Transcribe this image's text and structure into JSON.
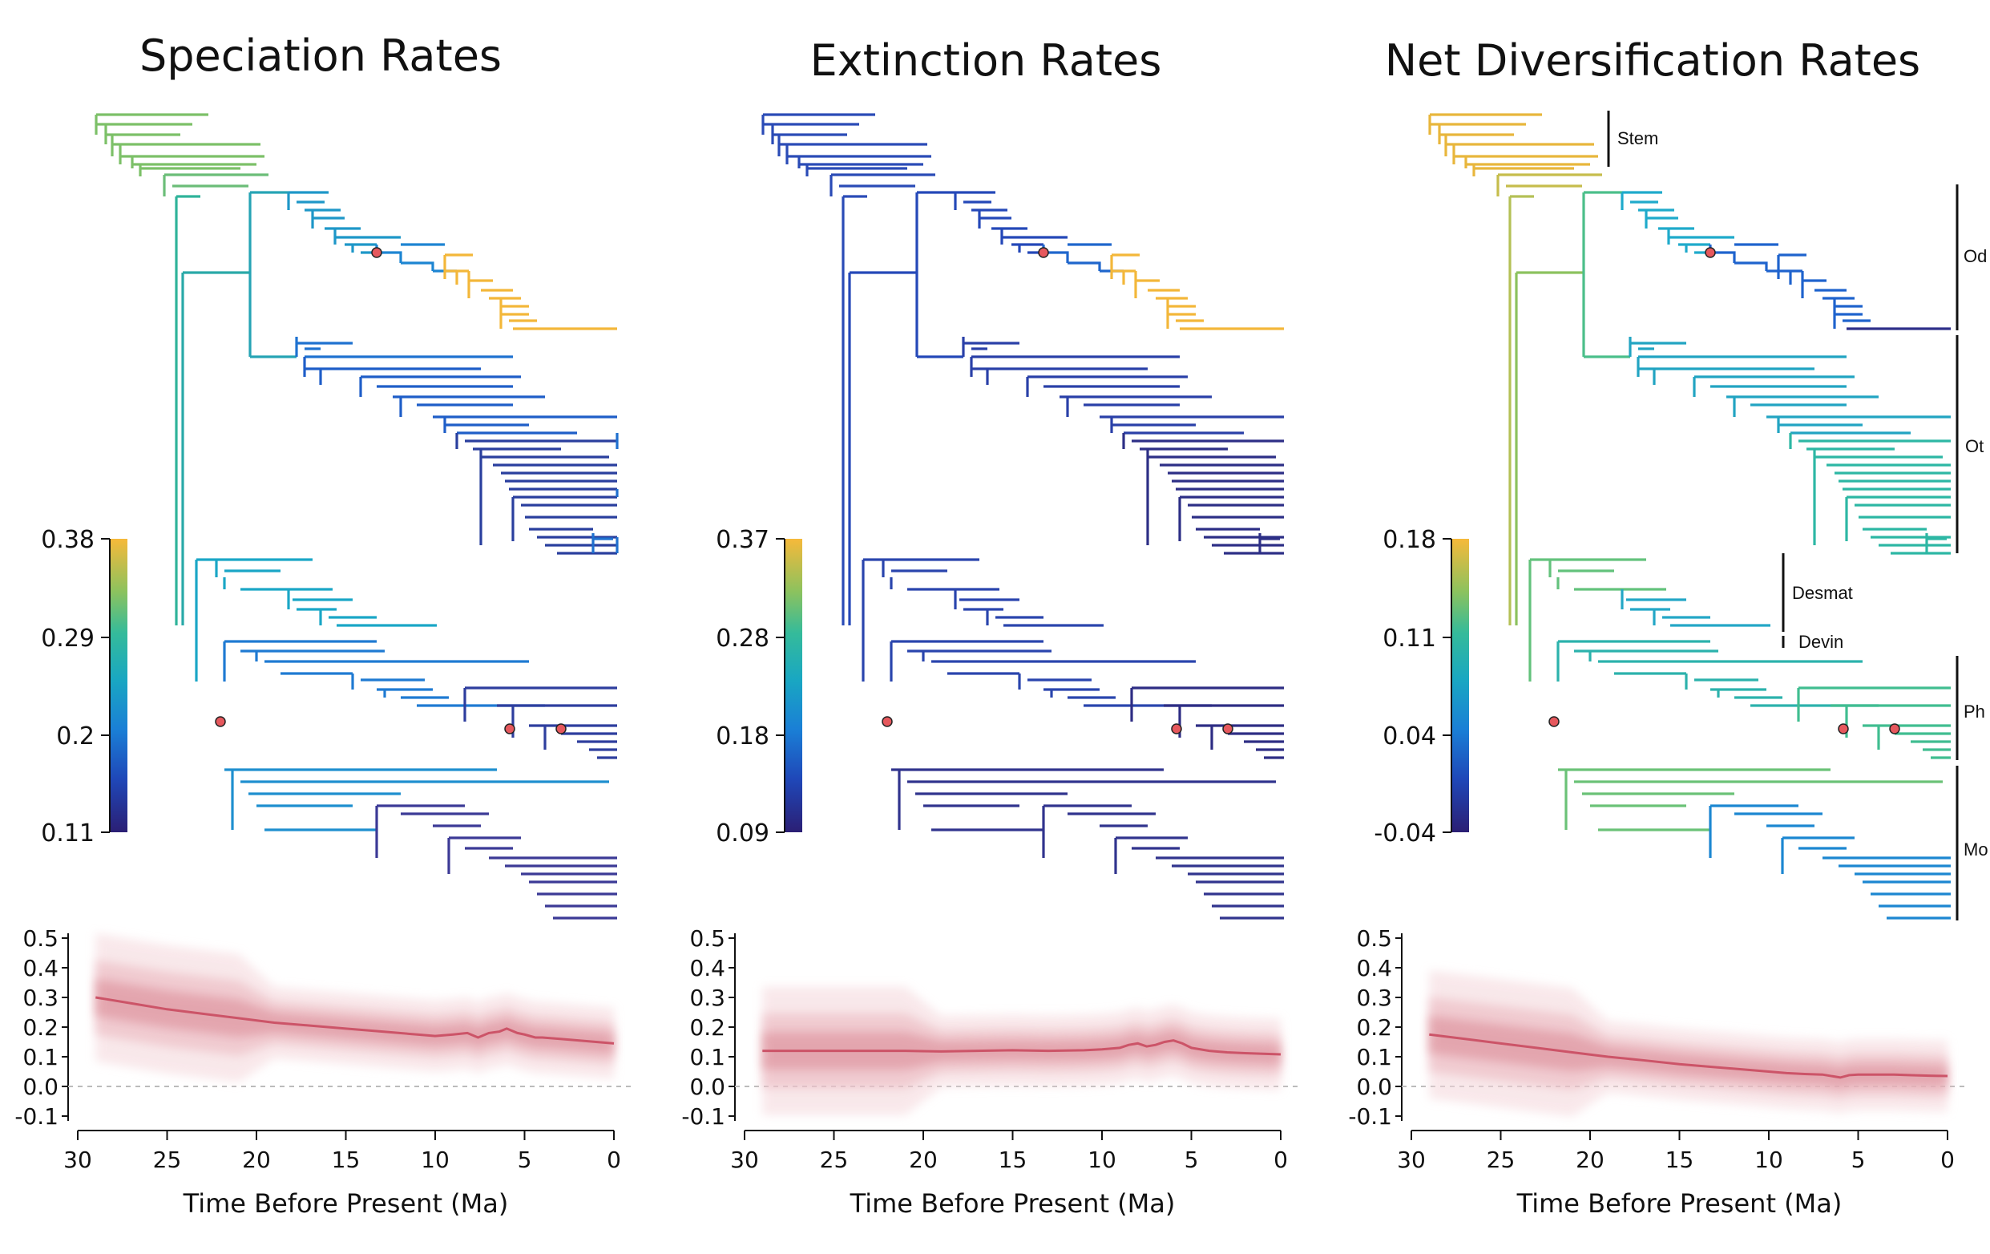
{
  "chart_data": [
    {
      "type": "line",
      "title": "Speciation Rates",
      "xlabel": "Time Before Present (Ma)",
      "ylabel": "",
      "x_reversed": true,
      "xlim": [
        30,
        0
      ],
      "ylim": [
        -0.1,
        0.5
      ],
      "xticks": [
        "30",
        "25",
        "20",
        "15",
        "10",
        "5",
        "0"
      ],
      "yticks": [
        "0.5",
        "0.4",
        "0.3",
        "0.2",
        "0.1",
        "0.0",
        "-0.1"
      ],
      "colorbar": {
        "labels": [
          "0.38",
          "0.29",
          "0.2",
          "0.11"
        ]
      },
      "series": [
        {
          "x": [
            29,
            27,
            25,
            23,
            21,
            19,
            17,
            15,
            13,
            11,
            10,
            9,
            8.2,
            7.6,
            7,
            6.4,
            6,
            5.4,
            5,
            4.4,
            4,
            3,
            2,
            1,
            0
          ],
          "y": [
            0.3,
            0.28,
            0.26,
            0.245,
            0.23,
            0.215,
            0.205,
            0.195,
            0.185,
            0.175,
            0.17,
            0.175,
            0.18,
            0.165,
            0.18,
            0.185,
            0.195,
            0.18,
            0.175,
            0.165,
            0.165,
            0.16,
            0.155,
            0.15,
            0.145
          ]
        }
      ]
    },
    {
      "type": "line",
      "title": "Extinction Rates",
      "xlabel": "Time Before Present (Ma)",
      "ylabel": "",
      "x_reversed": true,
      "xlim": [
        30,
        0
      ],
      "ylim": [
        -0.1,
        0.5
      ],
      "xticks": [
        "30",
        "25",
        "20",
        "15",
        "10",
        "5",
        "0"
      ],
      "yticks": [
        "0.5",
        "0.4",
        "0.3",
        "0.2",
        "0.1",
        "0.0",
        "-0.1"
      ],
      "colorbar": {
        "labels": [
          "0.37",
          "0.28",
          "0.18",
          "0.09"
        ]
      },
      "series": [
        {
          "x": [
            29,
            27,
            25,
            23,
            21,
            19,
            17,
            15,
            13,
            11,
            10,
            9,
            8.5,
            8,
            7.5,
            7,
            6.5,
            6,
            5.5,
            5,
            4.5,
            4,
            3,
            2,
            1,
            0
          ],
          "y": [
            0.12,
            0.12,
            0.12,
            0.12,
            0.12,
            0.118,
            0.12,
            0.122,
            0.12,
            0.122,
            0.125,
            0.13,
            0.14,
            0.145,
            0.135,
            0.14,
            0.15,
            0.155,
            0.145,
            0.13,
            0.125,
            0.12,
            0.115,
            0.112,
            0.11,
            0.108
          ]
        }
      ]
    },
    {
      "type": "line",
      "title": "Net Diversification Rates",
      "xlabel": "Time Before Present (Ma)",
      "ylabel": "",
      "x_reversed": true,
      "xlim": [
        30,
        0
      ],
      "ylim": [
        -0.1,
        0.5
      ],
      "xticks": [
        "30",
        "25",
        "20",
        "15",
        "10",
        "5",
        "0"
      ],
      "yticks": [
        "0.5",
        "0.4",
        "0.3",
        "0.2",
        "0.1",
        "0.0",
        "-0.1"
      ],
      "colorbar": {
        "labels": [
          "0.18",
          "0.11",
          "0.04",
          "-0.04"
        ]
      },
      "clade_labels": [
        "Stem",
        "Od",
        "Ot",
        "Desmat",
        "Devin",
        "Ph",
        "Mo"
      ],
      "series": [
        {
          "x": [
            29,
            27,
            25,
            23,
            21,
            19,
            17,
            15,
            13,
            11,
            10,
            9,
            8,
            7,
            6.5,
            6,
            5.5,
            5,
            4,
            3,
            2,
            1,
            0
          ],
          "y": [
            0.175,
            0.16,
            0.145,
            0.13,
            0.115,
            0.1,
            0.088,
            0.075,
            0.065,
            0.055,
            0.05,
            0.045,
            0.042,
            0.04,
            0.035,
            0.03,
            0.038,
            0.04,
            0.04,
            0.04,
            0.038,
            0.036,
            0.035
          ]
        }
      ]
    }
  ]
}
